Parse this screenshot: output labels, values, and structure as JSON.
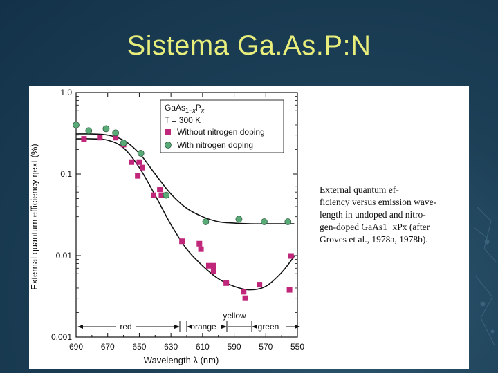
{
  "slide": {
    "title": "Sistema Ga.As.P:N"
  },
  "caption": {
    "line1": "External quantum ef-",
    "line2": "ficiency versus emission wave-",
    "line3": "length in undoped and nitro-",
    "line4": "gen-doped GaAs1−xPx (after",
    "line5": "Groves et al., 1978a, 1978b)."
  },
  "chart_data": {
    "type": "scatter",
    "xlabel": "Wavelength  λ  (nm)",
    "ylabel": "External quantum efficiency ηext (%)",
    "xlim": [
      690,
      550
    ],
    "ylim": [
      0.001,
      1.0
    ],
    "yscale": "log",
    "grid": false,
    "legend_position": "top-right",
    "x_ticks": [
      690,
      670,
      650,
      630,
      610,
      590,
      570,
      550
    ],
    "y_ticks": [
      {
        "value": 1.0,
        "label": "1.0"
      },
      {
        "value": 0.1,
        "label": "0.1"
      },
      {
        "value": 0.01,
        "label": "0.01"
      },
      {
        "value": 0.001,
        "label": "0.001"
      }
    ],
    "legend": {
      "material": "GaAs1−xPx",
      "temperature": "T = 300 K"
    },
    "series": [
      {
        "name": "Without nitrogen doping",
        "marker": "square",
        "color": "#c0267a",
        "points": [
          [
            685,
            0.27
          ],
          [
            675,
            0.28
          ],
          [
            665,
            0.28
          ],
          [
            660,
            0.23
          ],
          [
            655,
            0.14
          ],
          [
            651,
            0.095
          ],
          [
            650,
            0.14
          ],
          [
            648,
            0.12
          ],
          [
            641,
            0.055
          ],
          [
            637,
            0.065
          ],
          [
            636,
            0.055
          ],
          [
            623,
            0.015
          ],
          [
            612,
            0.014
          ],
          [
            611,
            0.012
          ],
          [
            606,
            0.0075
          ],
          [
            603,
            0.0075
          ],
          [
            603,
            0.0065
          ],
          [
            595,
            0.0046
          ],
          [
            584,
            0.0036
          ],
          [
            583,
            0.003
          ],
          [
            574,
            0.0044
          ],
          [
            555,
            0.0038
          ],
          [
            554,
            0.0099
          ]
        ]
      },
      {
        "name": "With nitrogen doping",
        "marker": "circle",
        "color": "#5aaa78",
        "points": [
          [
            690,
            0.4
          ],
          [
            682,
            0.34
          ],
          [
            671,
            0.36
          ],
          [
            665,
            0.32
          ],
          [
            660,
            0.24
          ],
          [
            649,
            0.18
          ],
          [
            633,
            0.055
          ],
          [
            608,
            0.026
          ],
          [
            587,
            0.028
          ],
          [
            571,
            0.026
          ],
          [
            556,
            0.026
          ]
        ]
      }
    ],
    "fit_curves": [
      {
        "series": "Without nitrogen doping",
        "points": [
          [
            690,
            0.27
          ],
          [
            680,
            0.27
          ],
          [
            670,
            0.26
          ],
          [
            660,
            0.21
          ],
          [
            650,
            0.12
          ],
          [
            640,
            0.055
          ],
          [
            630,
            0.024
          ],
          [
            620,
            0.012
          ],
          [
            610,
            0.0075
          ],
          [
            600,
            0.0052
          ],
          [
            590,
            0.0042
          ],
          [
            580,
            0.0038
          ],
          [
            570,
            0.0042
          ],
          [
            560,
            0.0062
          ],
          [
            552,
            0.0098
          ]
        ]
      },
      {
        "series": "With nitrogen doping",
        "points": [
          [
            690,
            0.31
          ],
          [
            680,
            0.31
          ],
          [
            670,
            0.3
          ],
          [
            660,
            0.26
          ],
          [
            650,
            0.18
          ],
          [
            640,
            0.1
          ],
          [
            630,
            0.057
          ],
          [
            620,
            0.038
          ],
          [
            610,
            0.03
          ],
          [
            600,
            0.026
          ],
          [
            590,
            0.025
          ],
          [
            580,
            0.0245
          ],
          [
            570,
            0.0245
          ],
          [
            560,
            0.0245
          ],
          [
            552,
            0.0245
          ]
        ]
      }
    ],
    "color_bands": {
      "red": "red",
      "orange": "orange",
      "yellow": "yellow",
      "green": "green"
    }
  }
}
